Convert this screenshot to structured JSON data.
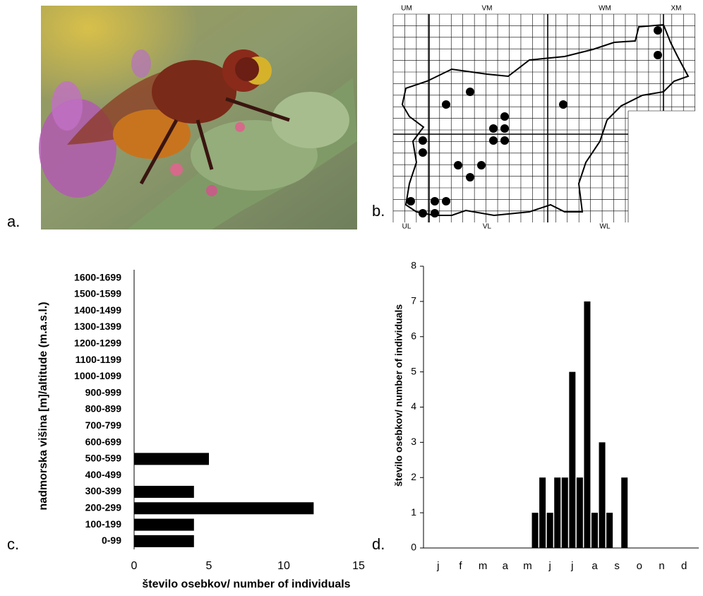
{
  "figure": {
    "panel_labels": [
      "a.",
      "b.",
      "c.",
      "d."
    ],
    "map_labels_top": [
      "UM",
      "VM",
      "WM",
      "XM"
    ],
    "map_labels_bottom": [
      "UL",
      "VL",
      "WL"
    ]
  },
  "chart_data": [
    {
      "type": "hbar",
      "categories": [
        "0-99",
        "100-199",
        "200-299",
        "300-399",
        "400-499",
        "500-599",
        "600-699",
        "700-799",
        "800-899",
        "900-999",
        "1000-1099",
        "1100-1199",
        "1200-1299",
        "1300-1399",
        "1400-1499",
        "1500-1599",
        "1600-1699"
      ],
      "values": [
        4,
        4,
        12,
        4,
        0,
        5,
        0,
        0,
        0,
        0,
        0,
        0,
        0,
        0,
        0,
        0,
        0
      ],
      "color": "#000000",
      "xlim": [
        0,
        15
      ],
      "xticks": [
        0,
        5,
        10,
        15
      ],
      "x_label": "število osebkov/ number of individuals",
      "y_label": "nadmorska višina [m]/altitude (m.a.s.l.)",
      "grid": false
    },
    {
      "type": "bar",
      "categories": [
        null,
        "j",
        null,
        null,
        "f",
        null,
        null,
        "m",
        null,
        null,
        "a",
        null,
        null,
        "m",
        null,
        null,
        "j",
        null,
        null,
        "j",
        null,
        null,
        "a",
        null,
        null,
        "s",
        null,
        null,
        "o",
        null,
        null,
        "n",
        null,
        null,
        "d",
        null
      ],
      "values": [
        0,
        0,
        0,
        0,
        0,
        0,
        0,
        0,
        0,
        0,
        0,
        0,
        0,
        0,
        1,
        2,
        1,
        2,
        2,
        5,
        2,
        7,
        1,
        3,
        1,
        0,
        2,
        0,
        0,
        0,
        0,
        0,
        0,
        0,
        0,
        0
      ],
      "color": "#000000",
      "ylim": [
        0,
        8
      ],
      "yticks": [
        0,
        1,
        2,
        3,
        4,
        5,
        6,
        7,
        8
      ],
      "y_label": "število osebkov/ number of individuals",
      "grid": false
    }
  ]
}
